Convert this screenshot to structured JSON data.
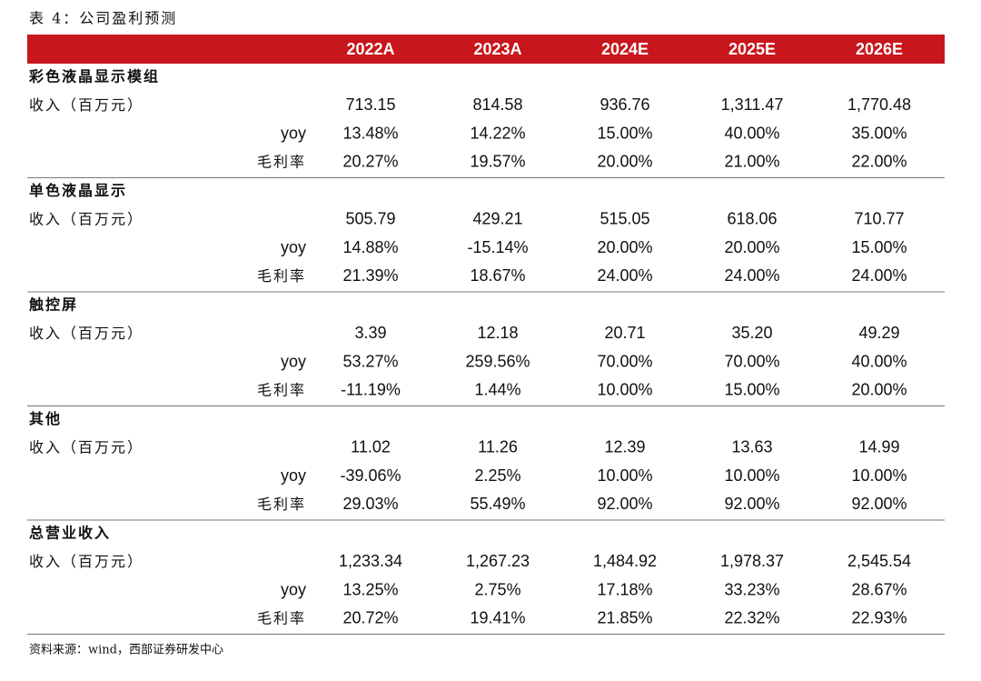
{
  "title": "表 4：公司盈利预测",
  "table": {
    "columns": [
      "2022A",
      "2023A",
      "2024E",
      "2025E",
      "2026E"
    ],
    "sections": [
      {
        "name": "彩色液晶显示模组",
        "rows": [
          {
            "label": "收入（百万元）",
            "values": [
              "713.15",
              "814.58",
              "936.76",
              "1,311.47",
              "1,770.48"
            ]
          },
          {
            "label": "yoy",
            "values": [
              "13.48%",
              "14.22%",
              "15.00%",
              "40.00%",
              "35.00%"
            ]
          },
          {
            "label": "毛利率",
            "values": [
              "20.27%",
              "19.57%",
              "20.00%",
              "21.00%",
              "22.00%"
            ]
          }
        ]
      },
      {
        "name": "单色液晶显示",
        "rows": [
          {
            "label": "收入（百万元）",
            "values": [
              "505.79",
              "429.21",
              "515.05",
              "618.06",
              "710.77"
            ]
          },
          {
            "label": "yoy",
            "values": [
              "14.88%",
              "-15.14%",
              "20.00%",
              "20.00%",
              "15.00%"
            ]
          },
          {
            "label": "毛利率",
            "values": [
              "21.39%",
              "18.67%",
              "24.00%",
              "24.00%",
              "24.00%"
            ]
          }
        ]
      },
      {
        "name": "触控屏",
        "rows": [
          {
            "label": "收入（百万元）",
            "values": [
              "3.39",
              "12.18",
              "20.71",
              "35.20",
              "49.29"
            ]
          },
          {
            "label": "yoy",
            "values": [
              "53.27%",
              "259.56%",
              "70.00%",
              "70.00%",
              "40.00%"
            ]
          },
          {
            "label": "毛利率",
            "values": [
              "-11.19%",
              "1.44%",
              "10.00%",
              "15.00%",
              "20.00%"
            ]
          }
        ]
      },
      {
        "name": "其他",
        "rows": [
          {
            "label": "收入（百万元）",
            "values": [
              "11.02",
              "11.26",
              "12.39",
              "13.63",
              "14.99"
            ]
          },
          {
            "label": "yoy",
            "values": [
              "-39.06%",
              "2.25%",
              "10.00%",
              "10.00%",
              "10.00%"
            ]
          },
          {
            "label": "毛利率",
            "values": [
              "29.03%",
              "55.49%",
              "92.00%",
              "92.00%",
              "92.00%"
            ]
          }
        ]
      },
      {
        "name": "总营业收入",
        "rows": [
          {
            "label": "收入（百万元）",
            "values": [
              "1,233.34",
              "1,267.23",
              "1,484.92",
              "1,978.37",
              "2,545.54"
            ]
          },
          {
            "label": "yoy",
            "values": [
              "13.25%",
              "2.75%",
              "17.18%",
              "33.23%",
              "28.67%"
            ]
          },
          {
            "label": "毛利率",
            "values": [
              "20.72%",
              "19.41%",
              "21.85%",
              "22.32%",
              "22.93%"
            ]
          }
        ]
      }
    ]
  },
  "source": "资料来源：wind，西部证券研发中心"
}
